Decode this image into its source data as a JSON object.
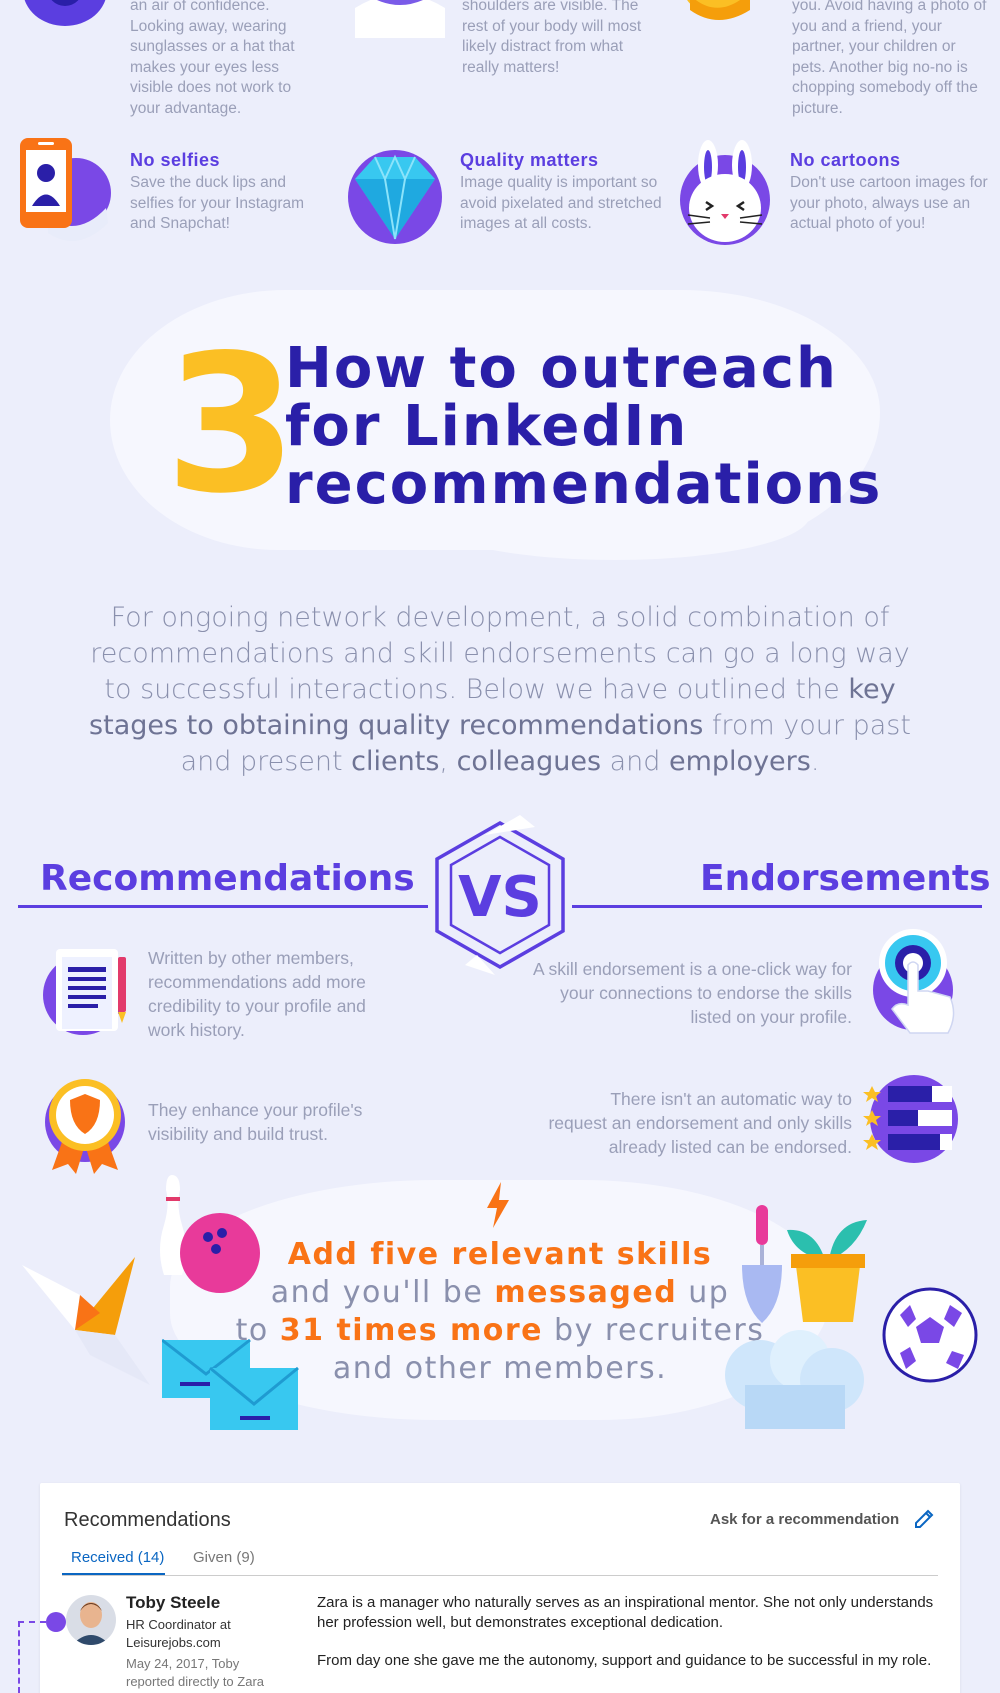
{
  "tips_top": [
    {
      "text": "an air of confidence. Looking away, wearing sunglasses or a hat that makes your eyes less visible does not work to your advantage."
    },
    {
      "text": "shoulders are visible. The rest of your body will most likely distract from what really matters!"
    },
    {
      "text": "you. Avoid having a photo of you and a friend, your partner, your children or pets. Another big no-no is chopping somebody off the picture."
    }
  ],
  "tips": [
    {
      "title": "No selfies",
      "text": "Save the duck lips and selfies for your Instagram and Snapchat!",
      "icon": "phone-selfie-icon"
    },
    {
      "title": "Quality matters",
      "text": "Image quality is important so avoid pixelated and stretched images at all costs.",
      "icon": "diamond-icon"
    },
    {
      "title": "No cartoons",
      "text": "Don't use cartoon images for your photo, always use an actual photo of you!",
      "icon": "bunny-icon"
    }
  ],
  "section": {
    "number": "3",
    "title_lines": [
      "How to outreach",
      "for LinkedIn",
      "recommendations"
    ]
  },
  "intro": {
    "p1": "For ongoing network development, a solid combination of recommendations and skill endorsements can go a long way to successful interactions. Below we have outlined the ",
    "b1": "key stages to obtaining quality recommendations",
    "p2": " from your past and present ",
    "b2": "clients",
    "p3": ", ",
    "b3": "colleagues",
    "p4": " and ",
    "b4": "employers",
    "p5": "."
  },
  "versus": {
    "left": "Recommendations",
    "vs": "VS",
    "right": "Endorsements",
    "left_points": [
      "Written by other members, recommendations add more credibility to your profile and work history.",
      "They enhance your profile's visibility and build trust."
    ],
    "right_points": [
      "A skill endorsement is a one-click way for your connections to endorse the skills listed on your profile.",
      "There isn't an automatic way to request an endorsement and only skills already listed can be endorsed."
    ]
  },
  "stat": {
    "l1": "Add five relevant skills",
    "l2a": "and you'll be ",
    "l2b": "messaged",
    "l2c": " up",
    "l3a": "to ",
    "l3b": "31 times more",
    "l3c": " by recruiters",
    "l4": "and other members."
  },
  "card": {
    "title": "Recommendations",
    "ask": "Ask for a recommendation",
    "tabs": [
      "Received (14)",
      "Given (9)"
    ],
    "person_name": "Toby Steele",
    "person_title": "HR Coordinator at Leisurejobs.com",
    "person_date": "May 24, 2017, Toby reported directly to Zara",
    "rec_p1": "Zara is a manager who naturally serves as an inspirational mentor. She not only understands her profession well, but demonstrates exceptional dedication.",
    "rec_p2": "From day one she gave me the autonomy, support and guidance to be successful in my role."
  },
  "colors": {
    "background": "#eceefb",
    "purple": "#5b3ee0",
    "navy": "#2a1fa8",
    "yellow": "#fbbf24",
    "orange": "#f97316",
    "linkedin_blue": "#0a66c2"
  }
}
